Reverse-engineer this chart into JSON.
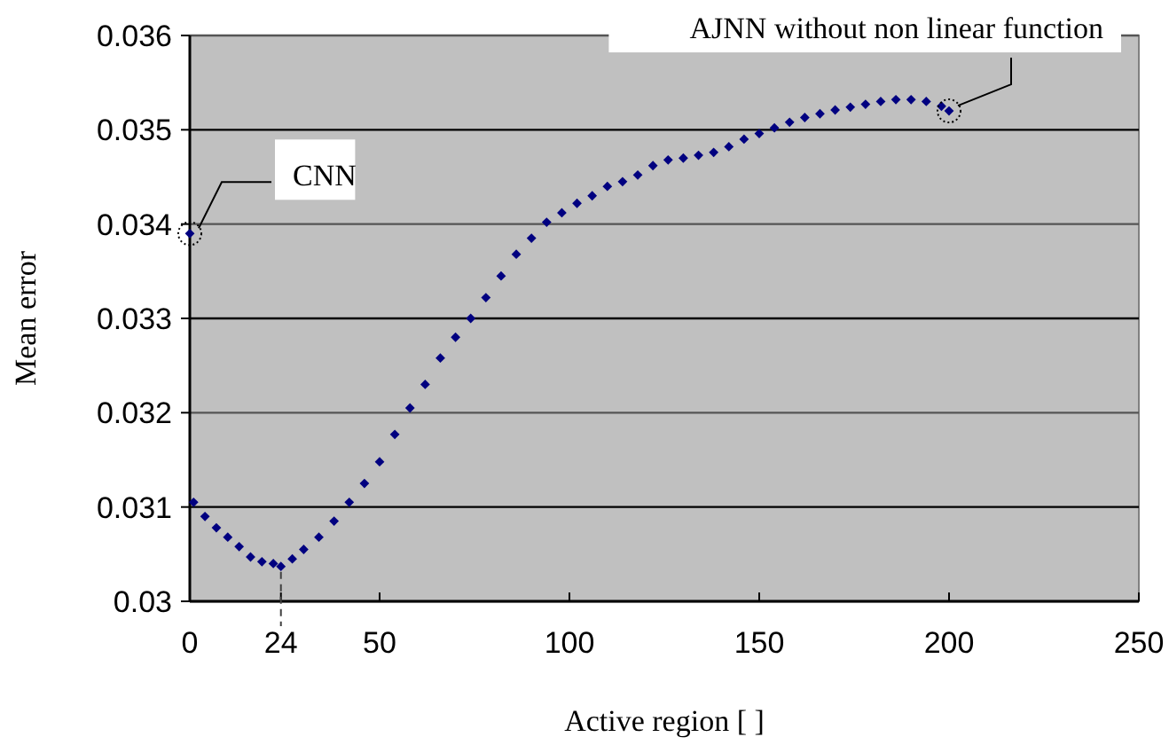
{
  "chart_data": {
    "type": "scatter",
    "xlabel": "Active region [ ]",
    "ylabel": "Mean error",
    "xlim": [
      0,
      250
    ],
    "xticks": [
      0,
      24,
      50,
      100,
      150,
      200,
      250
    ],
    "ylim": [
      0.03,
      0.036
    ],
    "yticks": [
      0.03,
      0.031,
      0.032,
      0.033,
      0.034,
      0.035,
      0.036
    ],
    "grid": "y",
    "marker": "diamond",
    "series": [
      {
        "color": "#000080",
        "x": [
          1,
          4,
          7,
          10,
          13,
          16,
          19,
          22,
          24,
          27,
          30,
          34,
          38,
          42,
          46,
          50,
          54,
          58,
          62,
          66,
          70,
          74,
          78,
          82,
          86,
          90,
          94,
          98,
          102,
          106,
          110,
          114,
          118,
          122,
          126,
          130,
          134,
          138,
          142,
          146,
          150,
          154,
          158,
          162,
          166,
          170,
          174,
          178,
          182,
          186,
          190,
          194,
          198,
          200
        ],
        "values": [
          0.03105,
          0.0309,
          0.03078,
          0.03068,
          0.03058,
          0.03047,
          0.03042,
          0.0304,
          0.03037,
          0.03045,
          0.03055,
          0.03068,
          0.03085,
          0.03105,
          0.03125,
          0.03148,
          0.03177,
          0.03205,
          0.0323,
          0.03258,
          0.0328,
          0.033,
          0.03322,
          0.03345,
          0.03368,
          0.03385,
          0.03402,
          0.03412,
          0.03422,
          0.0343,
          0.0344,
          0.03445,
          0.03452,
          0.03462,
          0.03468,
          0.0347,
          0.03473,
          0.03476,
          0.03482,
          0.0349,
          0.03496,
          0.03502,
          0.03508,
          0.03513,
          0.03517,
          0.03521,
          0.03524,
          0.03527,
          0.0353,
          0.03532,
          0.03532,
          0.0353,
          0.03525,
          0.0352
        ]
      },
      {
        "color": "#000080",
        "x": [
          0
        ],
        "values": [
          0.0339
        ]
      }
    ],
    "annotations": [
      {
        "text": "CNN",
        "x": 0,
        "y": 0.0339
      },
      {
        "text": "AJNN without non linear function",
        "x": 200,
        "y": 0.0352
      }
    ]
  }
}
